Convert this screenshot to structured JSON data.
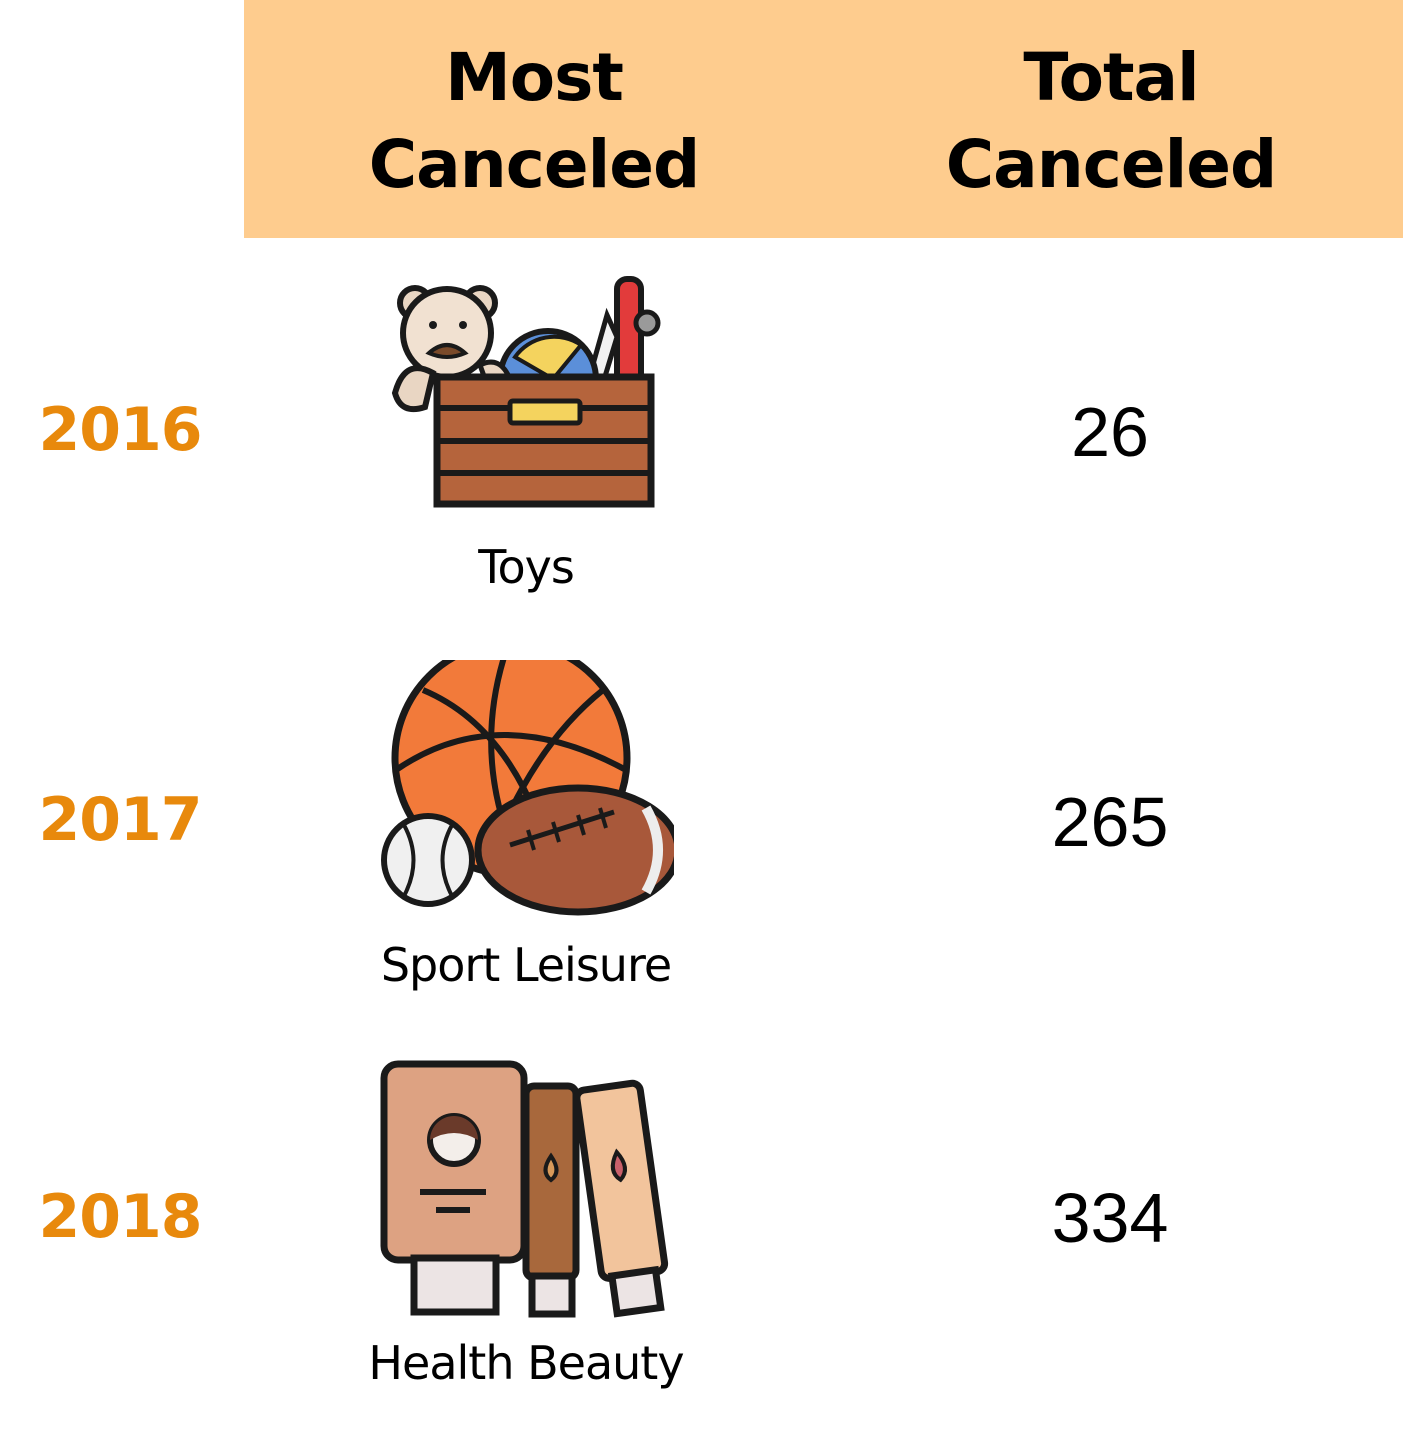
{
  "header": {
    "most_canceled": [
      "Most",
      "Canceled"
    ],
    "total_canceled": [
      "Total",
      "Canceled"
    ]
  },
  "chart_data": {
    "type": "table",
    "columns": [
      "",
      "Most Canceled",
      "Total Canceled"
    ],
    "rows": [
      {
        "year": "2016",
        "category": "Toys",
        "icon": "toy-box-icon",
        "total": "26"
      },
      {
        "year": "2017",
        "category": "Sport Leisure",
        "icon": "sports-balls-icon",
        "total": "265"
      },
      {
        "year": "2018",
        "category": "Health Beauty",
        "icon": "cosmetic-tubes-icon",
        "total": "334"
      }
    ]
  },
  "colors": {
    "header_background": "#FECC8E",
    "year_text": "#E8890C",
    "text": "#000000"
  }
}
